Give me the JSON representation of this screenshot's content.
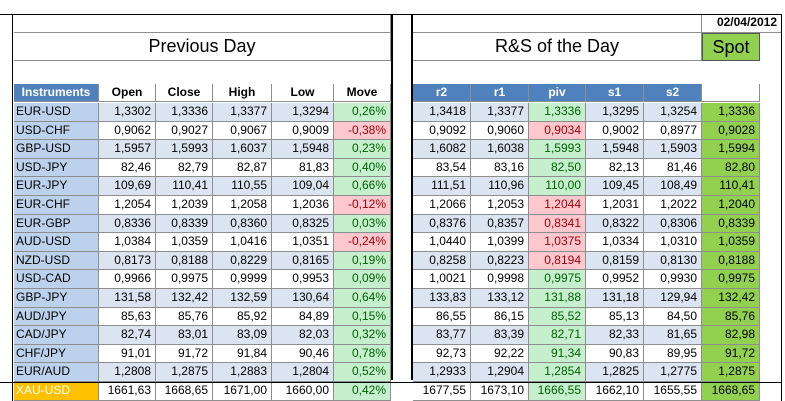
{
  "date": "02/04/2012",
  "left_title": "Previous Day",
  "right_title": "R&S of the Day",
  "spot_title": "Spot",
  "left_headers": [
    "Instruments",
    "Open",
    "Close",
    "High",
    "Low",
    "Move"
  ],
  "right_headers": [
    "r2",
    "r1",
    "piv",
    "s1",
    "s2"
  ],
  "colors": {
    "header_blue": "#4f81bd",
    "instrument_blue": "#bcd1ec",
    "band_light": "#dbe5f1",
    "band_white": "#ffffff",
    "pos_green": "#c6efce",
    "neg_red": "#ffc7ce",
    "spot_green": "#92d050",
    "highlight_orange": "#ffc000"
  },
  "rows": [
    {
      "inst": "EUR-USD",
      "open": "1,3302",
      "close": "1,3336",
      "high": "1,3377",
      "low": "1,3294",
      "move": "0,26%",
      "move_sign": "pos",
      "r2": "1,3418",
      "r1": "1,3377",
      "piv": "1,3336",
      "piv_sign": "pos",
      "s1": "1,3295",
      "s2": "1,3254",
      "spot": "1,3336"
    },
    {
      "inst": "USD-CHF",
      "open": "0,9062",
      "close": "0,9027",
      "high": "0,9067",
      "low": "0,9009",
      "move": "-0,38%",
      "move_sign": "neg",
      "r2": "0,9092",
      "r1": "0,9060",
      "piv": "0,9034",
      "piv_sign": "neg",
      "s1": "0,9002",
      "s2": "0,8977",
      "spot": "0,9028"
    },
    {
      "inst": "GBP-USD",
      "open": "1,5957",
      "close": "1,5993",
      "high": "1,6037",
      "low": "1,5948",
      "move": "0,23%",
      "move_sign": "pos",
      "r2": "1,6082",
      "r1": "1,6038",
      "piv": "1,5993",
      "piv_sign": "pos",
      "s1": "1,5948",
      "s2": "1,5903",
      "spot": "1,5994"
    },
    {
      "inst": "USD-JPY",
      "open": "82,46",
      "close": "82,79",
      "high": "82,87",
      "low": "81,83",
      "move": "0,40%",
      "move_sign": "pos",
      "r2": "83,54",
      "r1": "83,16",
      "piv": "82,50",
      "piv_sign": "pos",
      "s1": "82,13",
      "s2": "81,46",
      "spot": "82,80"
    },
    {
      "inst": "EUR-JPY",
      "open": "109,69",
      "close": "110,41",
      "high": "110,55",
      "low": "109,04",
      "move": "0,66%",
      "move_sign": "pos",
      "r2": "111,51",
      "r1": "110,96",
      "piv": "110,00",
      "piv_sign": "pos",
      "s1": "109,45",
      "s2": "108,49",
      "spot": "110,41"
    },
    {
      "inst": "EUR-CHF",
      "open": "1,2054",
      "close": "1,2039",
      "high": "1,2058",
      "low": "1,2036",
      "move": "-0,12%",
      "move_sign": "neg",
      "r2": "1,2066",
      "r1": "1,2053",
      "piv": "1,2044",
      "piv_sign": "neg",
      "s1": "1,2031",
      "s2": "1,2022",
      "spot": "1,2040"
    },
    {
      "inst": "EUR-GBP",
      "open": "0,8336",
      "close": "0,8339",
      "high": "0,8360",
      "low": "0,8325",
      "move": "0,03%",
      "move_sign": "pos",
      "r2": "0,8376",
      "r1": "0,8357",
      "piv": "0,8341",
      "piv_sign": "neg",
      "s1": "0,8322",
      "s2": "0,8306",
      "spot": "0,8339"
    },
    {
      "inst": "AUD-USD",
      "open": "1,0384",
      "close": "1,0359",
      "high": "1,0416",
      "low": "1,0351",
      "move": "-0,24%",
      "move_sign": "neg",
      "r2": "1,0440",
      "r1": "1,0399",
      "piv": "1,0375",
      "piv_sign": "neg",
      "s1": "1,0334",
      "s2": "1,0310",
      "spot": "1,0359"
    },
    {
      "inst": "NZD-USD",
      "open": "0,8173",
      "close": "0,8188",
      "high": "0,8229",
      "low": "0,8165",
      "move": "0,19%",
      "move_sign": "pos",
      "r2": "0,8258",
      "r1": "0,8223",
      "piv": "0,8194",
      "piv_sign": "neg",
      "s1": "0,8159",
      "s2": "0,8130",
      "spot": "0,8188"
    },
    {
      "inst": "USD-CAD",
      "open": "0,9966",
      "close": "0,9975",
      "high": "0,9999",
      "low": "0,9953",
      "move": "0,09%",
      "move_sign": "pos",
      "r2": "1,0021",
      "r1": "0,9998",
      "piv": "0,9975",
      "piv_sign": "pos",
      "s1": "0,9952",
      "s2": "0,9930",
      "spot": "0,9975"
    },
    {
      "inst": "GBP-JPY",
      "open": "131,58",
      "close": "132,42",
      "high": "132,59",
      "low": "130,64",
      "move": "0,64%",
      "move_sign": "pos",
      "r2": "133,83",
      "r1": "133,12",
      "piv": "131,88",
      "piv_sign": "pos",
      "s1": "131,18",
      "s2": "129,94",
      "spot": "132,42"
    },
    {
      "inst": "AUD/JPY",
      "open": "85,63",
      "close": "85,76",
      "high": "85,92",
      "low": "84,89",
      "move": "0,15%",
      "move_sign": "pos",
      "r2": "86,55",
      "r1": "86,15",
      "piv": "85,52",
      "piv_sign": "pos",
      "s1": "85,13",
      "s2": "84,50",
      "spot": "85,76"
    },
    {
      "inst": "CAD/JPY",
      "open": "82,74",
      "close": "83,01",
      "high": "83,09",
      "low": "82,03",
      "move": "0,32%",
      "move_sign": "pos",
      "r2": "83,77",
      "r1": "83,39",
      "piv": "82,71",
      "piv_sign": "pos",
      "s1": "82,33",
      "s2": "81,65",
      "spot": "82,98"
    },
    {
      "inst": "CHF/JPY",
      "open": "91,01",
      "close": "91,72",
      "high": "91,84",
      "low": "90,46",
      "move": "0,78%",
      "move_sign": "pos",
      "r2": "92,73",
      "r1": "92,22",
      "piv": "91,34",
      "piv_sign": "pos",
      "s1": "90,83",
      "s2": "89,95",
      "spot": "91,72"
    },
    {
      "inst": "EUR/AUD",
      "open": "1,2808",
      "close": "1,2875",
      "high": "1,2883",
      "low": "1,2804",
      "move": "0,52%",
      "move_sign": "pos",
      "r2": "1,2933",
      "r1": "1,2904",
      "piv": "1,2854",
      "piv_sign": "pos",
      "s1": "1,2825",
      "s2": "1,2775",
      "spot": "1,2875"
    },
    {
      "inst": "XAU-USD",
      "open": "1661,63",
      "close": "1668,65",
      "high": "1671,00",
      "low": "1660,00",
      "move": "0,42%",
      "move_sign": "pos",
      "r2": "1677,55",
      "r1": "1673,10",
      "piv": "1666,55",
      "piv_sign": "pos",
      "s1": "1662,10",
      "s2": "1655,55",
      "spot": "1668,65",
      "highlight": true
    }
  ]
}
